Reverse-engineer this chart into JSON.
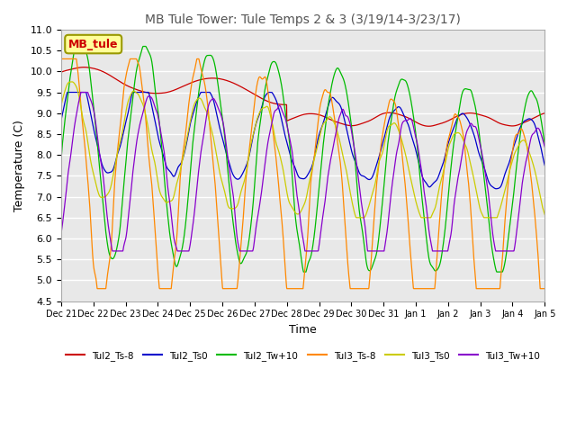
{
  "title": "MB Tule Tower: Tule Temps 2 & 3 (3/19/14-3/23/17)",
  "xlabel": "Time",
  "ylabel": "Temperature (C)",
  "ylim": [
    4.5,
    11.0
  ],
  "xlim": [
    0,
    15
  ],
  "background_color": "#ffffff",
  "plot_background": "#e8e8e8",
  "grid_color": "#ffffff",
  "annotation_text": "MB_tule",
  "annotation_color": "#cc0000",
  "annotation_bg": "#ffff99",
  "annotation_edge": "#999900",
  "series": [
    {
      "label": "Tul2_Ts-8",
      "color": "#cc0000"
    },
    {
      "label": "Tul2_Ts0",
      "color": "#0000cc"
    },
    {
      "label": "Tul2_Tw+10",
      "color": "#00bb00"
    },
    {
      "label": "Tul3_Ts-8",
      "color": "#ff8800"
    },
    {
      "label": "Tul3_Ts0",
      "color": "#cccc00"
    },
    {
      "label": "Tul3_Tw+10",
      "color": "#8800cc"
    }
  ],
  "xtick_labels": [
    "Dec 21",
    "Dec 22",
    "Dec 23",
    "Dec 24",
    "Dec 25",
    "Dec 26",
    "Dec 27",
    "Dec 28",
    "Dec 29",
    "Dec 30",
    "Dec 31",
    "Jan 1",
    "Jan 2",
    "Jan 3",
    "Jan 4",
    "Jan 5"
  ],
  "xtick_positions": [
    0,
    1,
    2,
    3,
    4,
    5,
    6,
    7,
    8,
    9,
    10,
    11,
    12,
    13,
    14,
    15
  ],
  "ytick_labels": [
    "4.5",
    "5.0",
    "5.5",
    "6.0",
    "6.5",
    "7.0",
    "7.5",
    "8.0",
    "8.5",
    "9.0",
    "9.5",
    "10.0",
    "10.5",
    "11.0"
  ],
  "ytick_positions": [
    4.5,
    5.0,
    5.5,
    6.0,
    6.5,
    7.0,
    7.5,
    8.0,
    8.5,
    9.0,
    9.5,
    10.0,
    10.5,
    11.0
  ]
}
